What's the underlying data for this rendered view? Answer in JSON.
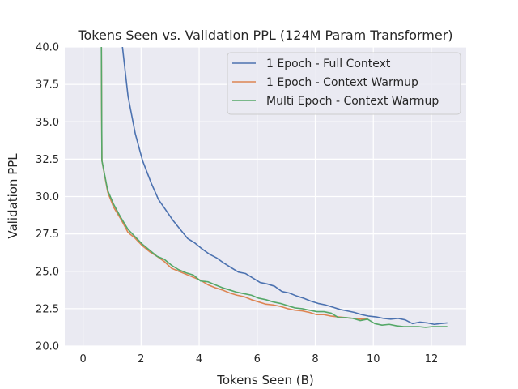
{
  "chart_data": {
    "type": "line",
    "title": "Tokens Seen vs. Validation PPL (124M Param Transformer)",
    "xlabel": "Tokens Seen (B)",
    "ylabel": "Validation PPL",
    "xlim": [
      -0.63,
      13.2
    ],
    "ylim": [
      20.0,
      40.0
    ],
    "xticks": [
      0,
      2,
      4,
      6,
      8,
      10,
      12
    ],
    "yticks": [
      20.0,
      22.5,
      25.0,
      27.5,
      30.0,
      32.5,
      35.0,
      37.5,
      40.0
    ],
    "ytick_labels": [
      "20.0",
      "22.5",
      "25.0",
      "27.5",
      "30.0",
      "32.5",
      "35.0",
      "37.5",
      "40.0"
    ],
    "grid": true,
    "legend_position": "top-right",
    "series": [
      {
        "name": "1 Epoch - Full Context",
        "color": "#4c72b0",
        "x": [
          1.3,
          1.55,
          1.8,
          2.05,
          2.35,
          2.6,
          2.85,
          3.1,
          3.35,
          3.6,
          3.85,
          4.1,
          4.35,
          4.6,
          4.85,
          5.1,
          5.35,
          5.6,
          5.85,
          6.1,
          6.35,
          6.6,
          6.85,
          7.1,
          7.35,
          7.6,
          7.85,
          8.1,
          8.35,
          8.6,
          8.85,
          9.1,
          9.35,
          9.6,
          9.85,
          10.1,
          10.35,
          10.6,
          10.85,
          11.1,
          11.35,
          11.6,
          11.85,
          12.1,
          12.3,
          12.55
        ],
        "y": [
          41.0,
          36.7,
          34.2,
          32.4,
          30.9,
          29.8,
          29.1,
          28.4,
          27.8,
          27.2,
          26.9,
          26.5,
          26.15,
          25.9,
          25.55,
          25.25,
          24.95,
          24.85,
          24.55,
          24.25,
          24.15,
          24.0,
          23.65,
          23.55,
          23.35,
          23.2,
          23.0,
          22.85,
          22.75,
          22.6,
          22.45,
          22.35,
          22.25,
          22.1,
          22.0,
          21.95,
          21.85,
          21.8,
          21.85,
          21.75,
          21.5,
          21.6,
          21.55,
          21.45,
          21.5,
          21.55
        ]
      },
      {
        "name": "1 Epoch - Context Warmup",
        "color": "#dd8452",
        "x": [
          0.63,
          0.64,
          0.65,
          0.85,
          1.05,
          1.3,
          1.55,
          1.8,
          2.05,
          2.3,
          2.55,
          2.8,
          3.05,
          3.3,
          3.55,
          3.8,
          4.05,
          4.3,
          4.55,
          4.8,
          5.05,
          5.3,
          5.55,
          5.8,
          6.05,
          6.3,
          6.55,
          6.8,
          7.05,
          7.3,
          7.55,
          7.8,
          8.05,
          8.3,
          8.55,
          8.8,
          9.05,
          9.3,
          9.55,
          9.8
        ],
        "y": [
          41.0,
          36.0,
          32.4,
          30.3,
          29.3,
          28.5,
          27.6,
          27.2,
          26.7,
          26.3,
          26.0,
          25.65,
          25.2,
          25.0,
          24.8,
          24.6,
          24.4,
          24.1,
          23.9,
          23.75,
          23.55,
          23.4,
          23.3,
          23.1,
          22.95,
          22.8,
          22.75,
          22.65,
          22.5,
          22.4,
          22.35,
          22.25,
          22.1,
          22.1,
          22.0,
          21.95,
          21.9,
          21.85,
          21.8,
          21.8
        ]
      },
      {
        "name": "Multi Epoch - Context Warmup",
        "color": "#55a868",
        "x": [
          0.63,
          0.64,
          0.65,
          0.85,
          1.05,
          1.3,
          1.55,
          1.8,
          2.05,
          2.3,
          2.55,
          2.8,
          3.05,
          3.3,
          3.55,
          3.8,
          4.05,
          4.3,
          4.55,
          4.8,
          5.05,
          5.3,
          5.55,
          5.8,
          6.05,
          6.3,
          6.55,
          6.8,
          7.05,
          7.3,
          7.55,
          7.8,
          8.05,
          8.3,
          8.55,
          8.8,
          9.05,
          9.3,
          9.55,
          9.8,
          10.05,
          10.3,
          10.55,
          10.8,
          11.05,
          11.3,
          11.55,
          11.8,
          12.05,
          12.3,
          12.55
        ],
        "y": [
          41.0,
          36.0,
          32.4,
          30.4,
          29.5,
          28.6,
          27.8,
          27.3,
          26.8,
          26.4,
          26.0,
          25.8,
          25.4,
          25.1,
          24.9,
          24.75,
          24.35,
          24.3,
          24.1,
          23.9,
          23.75,
          23.6,
          23.5,
          23.4,
          23.2,
          23.1,
          22.95,
          22.85,
          22.7,
          22.55,
          22.5,
          22.4,
          22.3,
          22.3,
          22.2,
          21.9,
          21.9,
          21.85,
          21.7,
          21.8,
          21.5,
          21.4,
          21.45,
          21.35,
          21.3,
          21.3,
          21.3,
          21.25,
          21.3,
          21.3,
          21.3
        ]
      }
    ]
  }
}
